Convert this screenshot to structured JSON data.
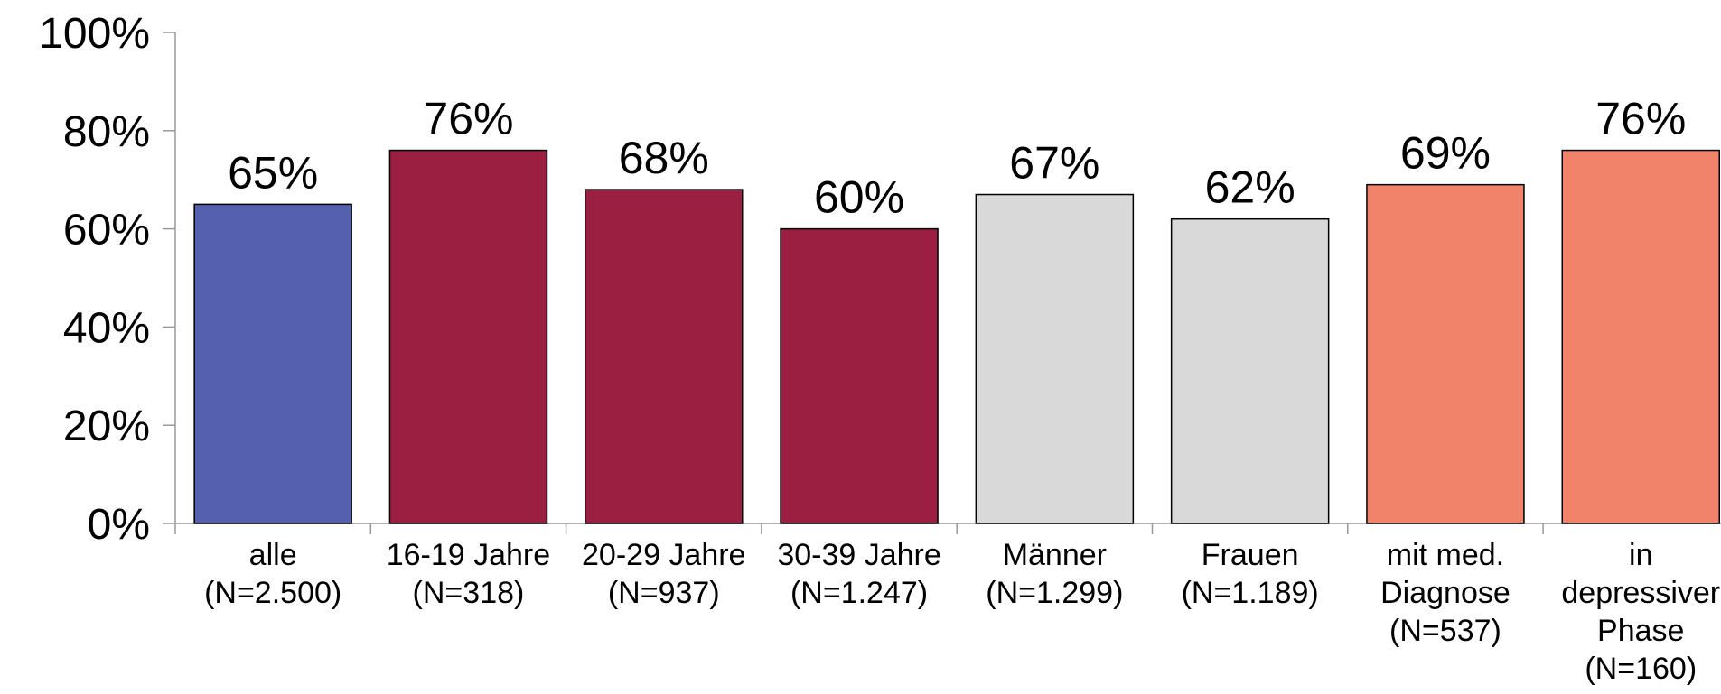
{
  "chart_data": {
    "type": "bar",
    "categories": [
      [
        "alle",
        "(N=2.500)"
      ],
      [
        "16-19 Jahre",
        "(N=318)"
      ],
      [
        "20-29 Jahre",
        "(N=937)"
      ],
      [
        "30-39 Jahre",
        "(N=1.247)"
      ],
      [
        "Männer",
        "(N=1.299)"
      ],
      [
        "Frauen",
        "(N=1.189)"
      ],
      [
        "mit med.",
        "Diagnose",
        "(N=537)"
      ],
      [
        "in",
        "depressiver",
        "Phase",
        "(N=160)"
      ]
    ],
    "values": [
      65,
      76,
      68,
      60,
      67,
      62,
      69,
      76
    ],
    "value_labels": [
      "65%",
      "76%",
      "68%",
      "60%",
      "67%",
      "62%",
      "69%",
      "76%"
    ],
    "colors": [
      "#5561ad",
      "#9b1f40",
      "#9b1f40",
      "#9b1f40",
      "#d9d9d9",
      "#d9d9d9",
      "#f2836b",
      "#f2836b"
    ],
    "ylim": [
      0,
      100
    ],
    "yticks": [
      {
        "value": 0,
        "label": "0%"
      },
      {
        "value": 20,
        "label": "20%"
      },
      {
        "value": 40,
        "label": "40%"
      },
      {
        "value": 60,
        "label": "60%"
      },
      {
        "value": 80,
        "label": "80%"
      },
      {
        "value": 100,
        "label": "100%"
      }
    ],
    "grid": false
  }
}
